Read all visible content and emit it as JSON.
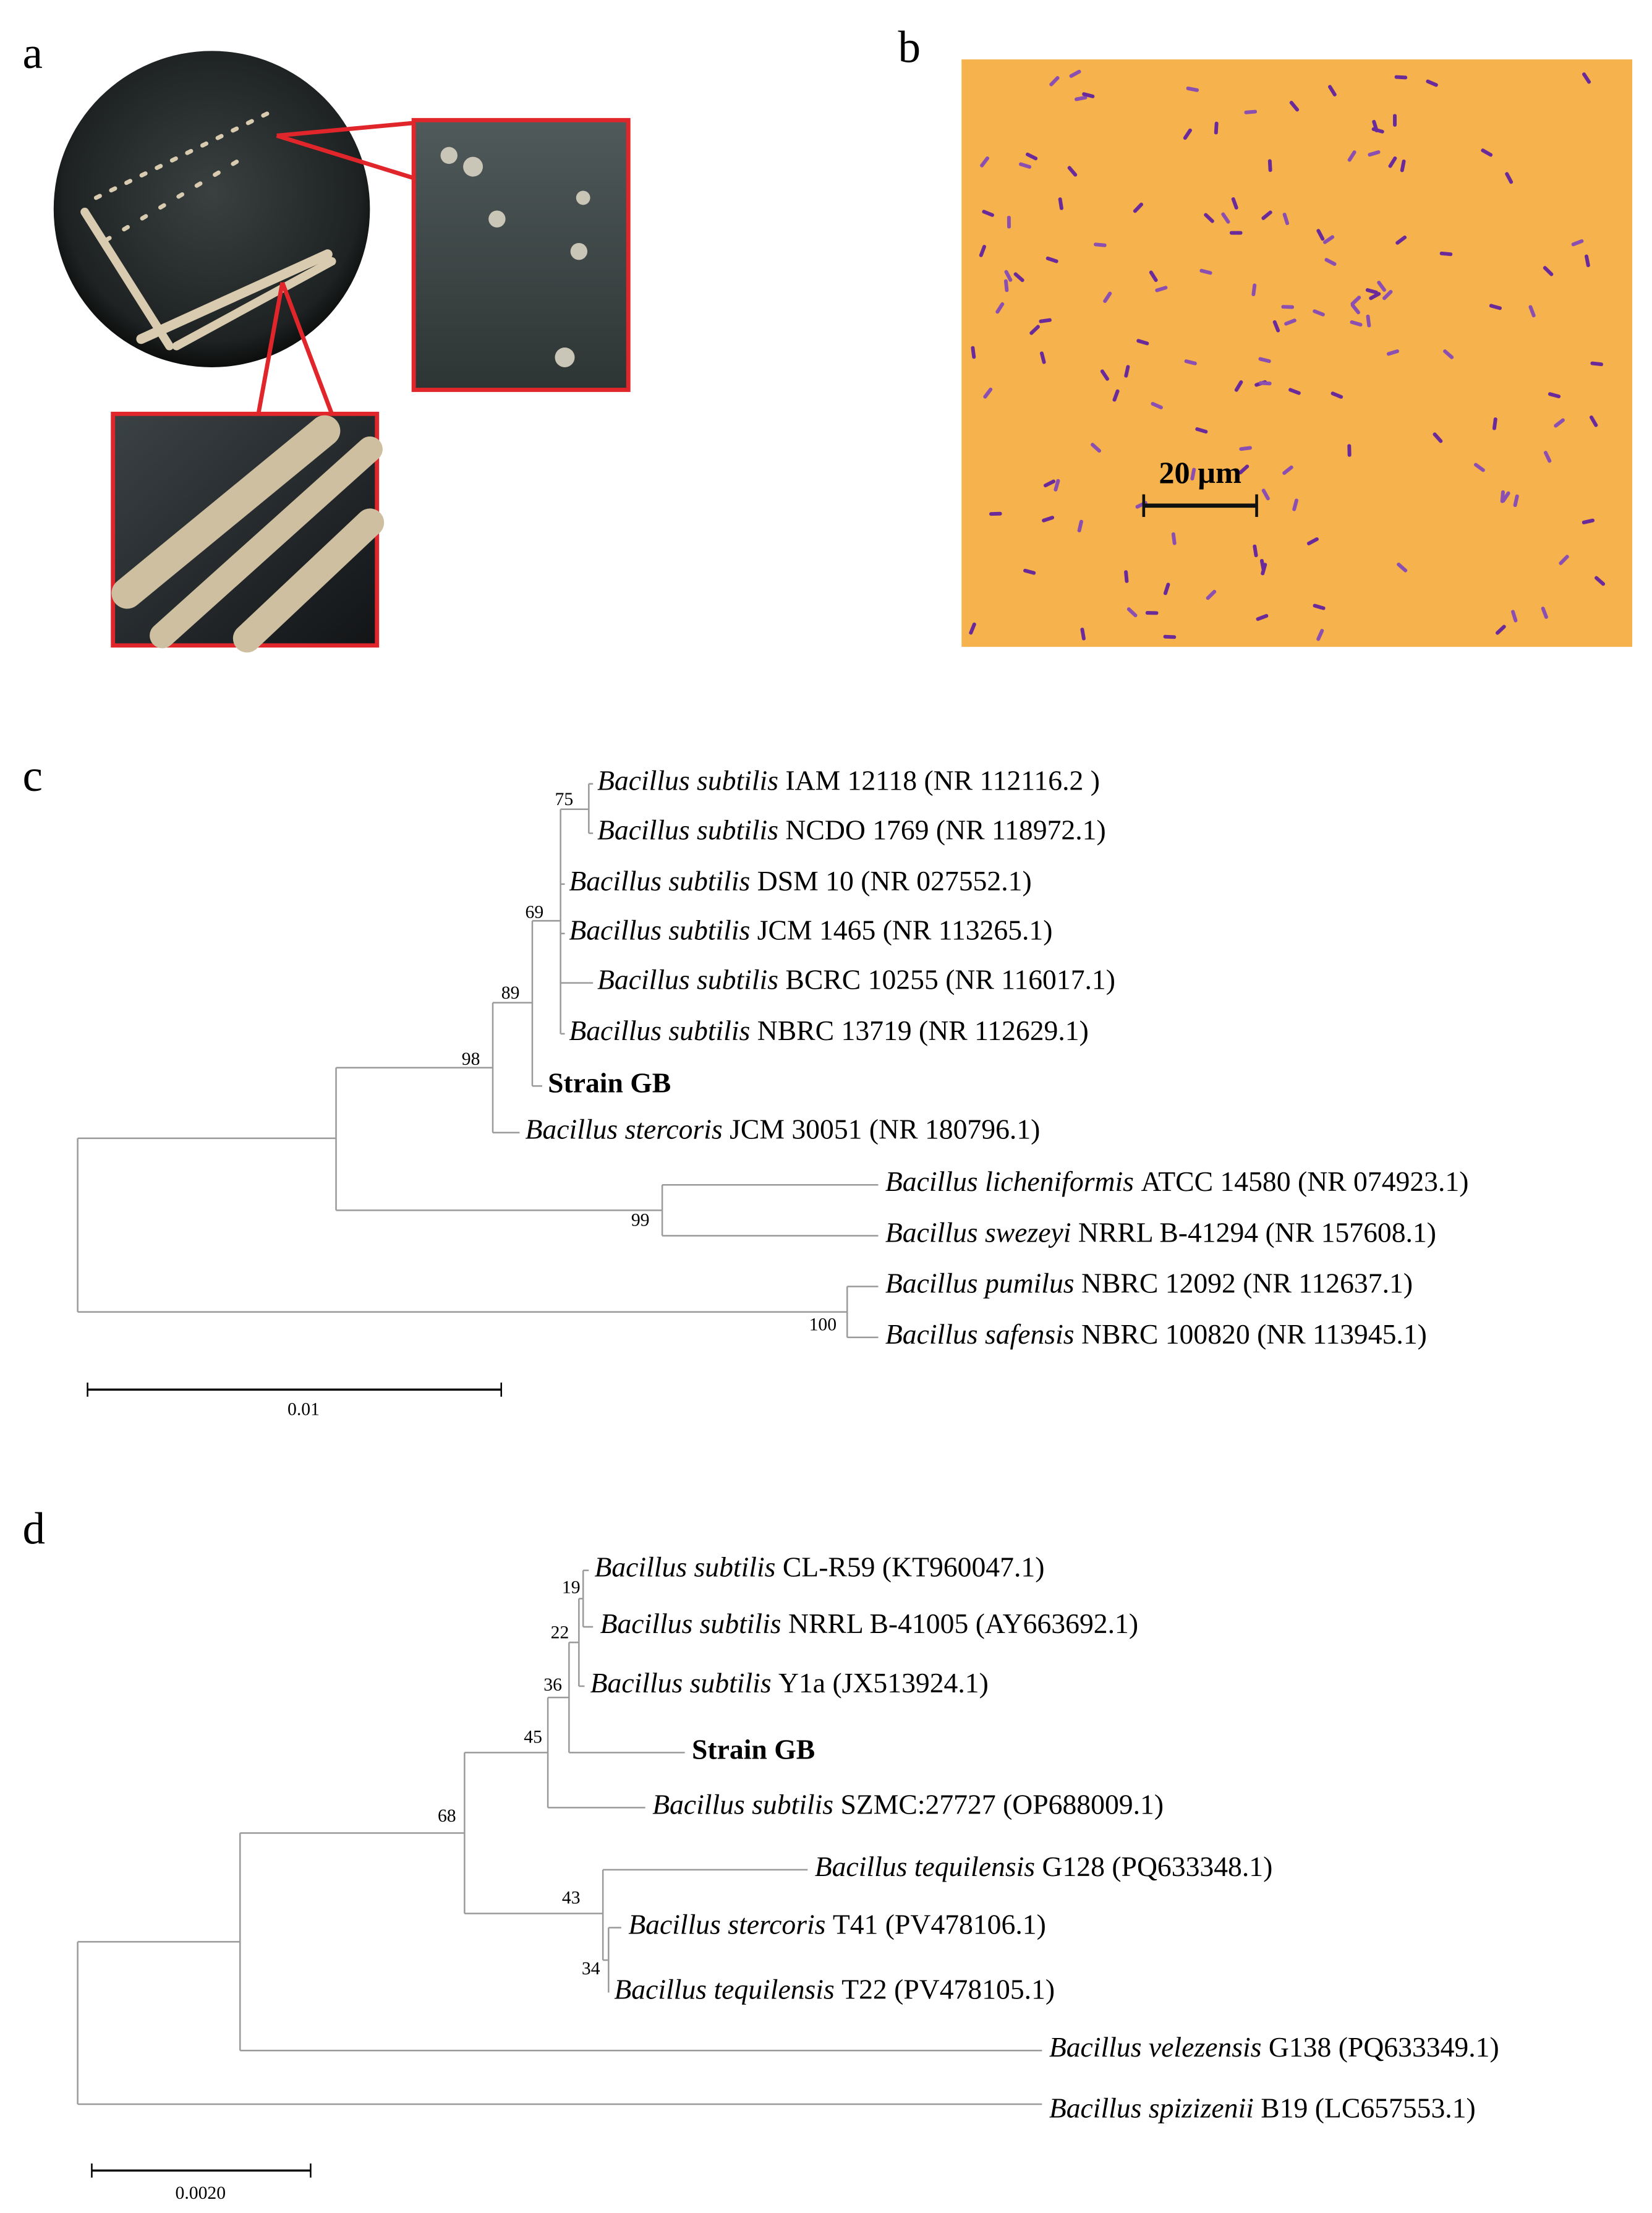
{
  "panel_a": {
    "label": "a"
  },
  "panel_b": {
    "label": "b",
    "scale_bar": "20 µm"
  },
  "panel_c": {
    "label": "c",
    "leaves": [
      {
        "species": "Bacillus subtilis",
        "strain": "IAM 12118 (NR 112116.2 )"
      },
      {
        "species": "Bacillus subtilis",
        "strain": "NCDO 1769 (NR 118972.1)"
      },
      {
        "species": "Bacillus subtilis",
        "strain": "DSM 10 (NR 027552.1)"
      },
      {
        "species": "Bacillus subtilis",
        "strain": "JCM 1465 (NR 113265.1)"
      },
      {
        "species": "Bacillus subtilis",
        "strain": "BCRC 10255 (NR 116017.1)"
      },
      {
        "species": "Bacillus subtilis",
        "strain": "NBRC 13719 (NR 112629.1)"
      },
      {
        "name": "Strain GB"
      },
      {
        "species": "Bacillus stercoris",
        "strain": "JCM 30051 (NR 180796.1)"
      },
      {
        "species": "Bacillus licheniformis",
        "strain": "ATCC 14580 (NR 074923.1)"
      },
      {
        "species": "Bacillus swezeyi",
        "strain": "NRRL B-41294 (NR 157608.1)"
      },
      {
        "species": "Bacillus pumilus",
        "strain": "NBRC 12092 (NR 112637.1)"
      },
      {
        "species": "Bacillus safensis",
        "strain": "NBRC 100820 (NR 113945.1)"
      }
    ],
    "bootstrap": [
      "75",
      "69",
      "89",
      "98",
      "99",
      "100"
    ],
    "scale": "0.01"
  },
  "panel_d": {
    "label": "d",
    "leaves": [
      {
        "species": "Bacillus subtilis",
        "strain": "CL-R59 (KT960047.1)"
      },
      {
        "species": "Bacillus subtilis",
        "strain": "NRRL B-41005 (AY663692.1)"
      },
      {
        "species": "Bacillus subtilis",
        "strain": "Y1a (JX513924.1)"
      },
      {
        "name": "Strain GB"
      },
      {
        "species": "Bacillus subtilis",
        "strain": "SZMC:27727 (OP688009.1)"
      },
      {
        "species": "Bacillus tequilensis",
        "strain": "G128 (PQ633348.1)"
      },
      {
        "species": "Bacillus stercoris",
        "strain": "T41 (PV478106.1)"
      },
      {
        "species": "Bacillus tequilensis",
        "strain": "T22 (PV478105.1)"
      },
      {
        "species": "Bacillus velezensis",
        "strain": "G138 (PQ633349.1)"
      },
      {
        "species": "Bacillus spizizenii",
        "strain": "B19 (LC657553.1)"
      }
    ],
    "bootstrap": [
      "19",
      "22",
      "36",
      "45",
      "68",
      "43",
      "34"
    ],
    "scale": "0.0020"
  }
}
